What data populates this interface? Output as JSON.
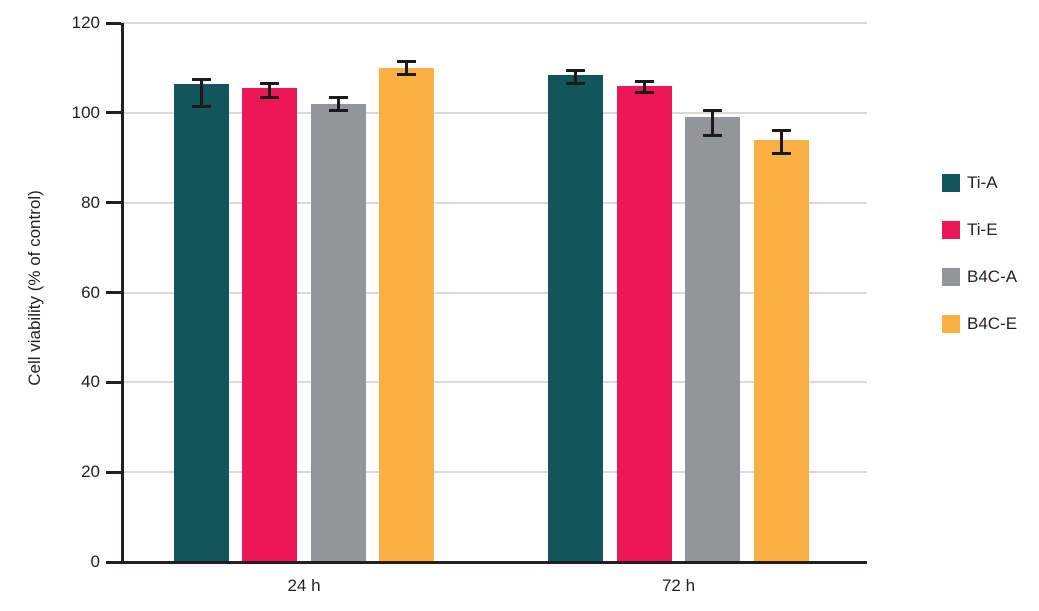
{
  "chart_data": {
    "type": "bar",
    "title": "",
    "categories": [
      "24 h",
      "72 h"
    ],
    "series": [
      {
        "name": "Ti-A",
        "color": "#12555B",
        "values": [
          106.5,
          108.5
        ],
        "error_low": [
          101.5,
          106.5
        ],
        "error_high": [
          107.5,
          109.5
        ]
      },
      {
        "name": "Ti-E",
        "color": "#ED1757",
        "values": [
          105.5,
          106.0
        ],
        "error_low": [
          103.5,
          104.5
        ],
        "error_high": [
          106.5,
          107.0
        ]
      },
      {
        "name": "B4C-A",
        "color": "#949599",
        "values": [
          102.0,
          99.0
        ],
        "error_low": [
          100.5,
          95.0
        ],
        "error_high": [
          103.5,
          100.5
        ]
      },
      {
        "name": "B4C-E",
        "color": "#FAB042",
        "values": [
          110.0,
          94.0
        ],
        "error_low": [
          108.5,
          91.0
        ],
        "error_high": [
          111.5,
          96.0
        ]
      }
    ],
    "xlabel": "",
    "ylabel": "Cell viability (% of control)",
    "ylim": [
      0,
      120
    ],
    "ytick_step": 20,
    "yticks": [
      0,
      20,
      40,
      60,
      80,
      100,
      120
    ],
    "grid": true,
    "grid_color": "#d9d9d9",
    "axis_color": "#231f20",
    "error_bar_color": "#1a1a1a",
    "background": "#ffffff",
    "legend_position": "right"
  }
}
